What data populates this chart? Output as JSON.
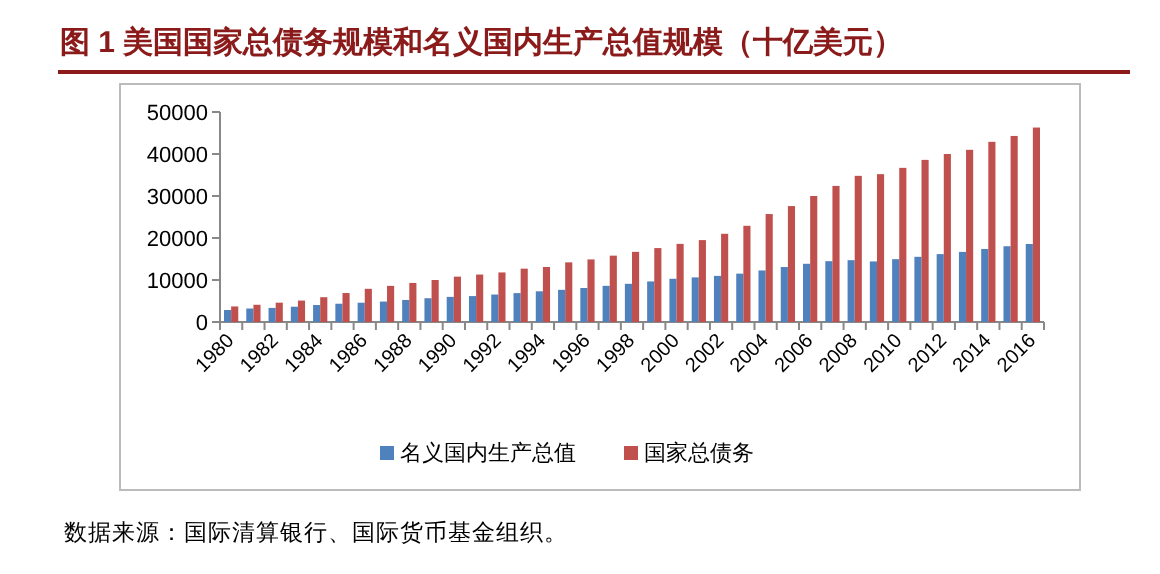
{
  "chart_data": {
    "type": "bar",
    "title": "图 1  美国国家总债务规模和名义国内生产总值规模（十亿美元）",
    "categories": [
      "1980",
      null,
      "1982",
      null,
      "1984",
      null,
      "1986",
      null,
      "1988",
      null,
      "1990",
      null,
      "1992",
      null,
      "1994",
      null,
      "1996",
      null,
      "1998",
      null,
      "2000",
      null,
      "2002",
      null,
      "2004",
      null,
      "2006",
      null,
      "2008",
      null,
      "2010",
      null,
      "2012",
      null,
      "2014",
      null,
      "2016"
    ],
    "series": [
      {
        "name": "名义国内生产总值",
        "color": "#4f81bd",
        "values": [
          2860,
          3210,
          3350,
          3640,
          4040,
          4350,
          4590,
          4870,
          5250,
          5660,
          5980,
          6170,
          6540,
          6880,
          7310,
          7660,
          8100,
          8610,
          9090,
          9660,
          10290,
          10620,
          10980,
          11510,
          12270,
          13090,
          13860,
          14480,
          14720,
          14420,
          14960,
          15520,
          16160,
          16690,
          17390,
          18040,
          18570
        ]
      },
      {
        "name": "国家总债务",
        "color": "#c0504d",
        "values": [
          3700,
          4100,
          4600,
          5100,
          5900,
          6900,
          7900,
          8600,
          9300,
          10000,
          10800,
          11300,
          11800,
          12700,
          13100,
          14200,
          14900,
          15800,
          16700,
          17600,
          18600,
          19500,
          21000,
          22900,
          25700,
          27600,
          30000,
          32400,
          34800,
          35200,
          36700,
          38600,
          40000,
          41000,
          42900,
          44300,
          46300
        ]
      }
    ],
    "ylim": [
      0,
      50000
    ],
    "yticks": [
      0,
      10000,
      20000,
      30000,
      40000,
      50000
    ],
    "grid": false,
    "legend": "bottom",
    "annotations": [
      "数据来源：国际清算银行、国际货币基金组织。"
    ]
  }
}
